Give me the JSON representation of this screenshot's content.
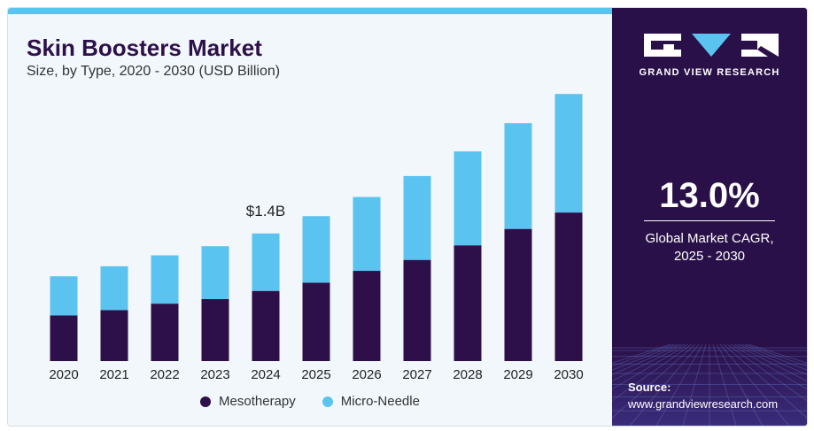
{
  "header": {
    "title": "Skin Boosters Market",
    "subtitle": "Size, by Type, 2020 - 2030 (USD Billion)"
  },
  "chart_data": {
    "type": "bar",
    "stacked": true,
    "categories": [
      "2020",
      "2021",
      "2022",
      "2023",
      "2024",
      "2025",
      "2026",
      "2027",
      "2028",
      "2029",
      "2030"
    ],
    "series": [
      {
        "name": "Mesotherapy",
        "color": "#2d0f4a",
        "values": [
          0.5,
          0.56,
          0.63,
          0.68,
          0.77,
          0.86,
          0.99,
          1.11,
          1.27,
          1.45,
          1.63
        ]
      },
      {
        "name": "Micro-Needle",
        "color": "#5bc3ef",
        "values": [
          0.43,
          0.48,
          0.53,
          0.58,
          0.63,
          0.73,
          0.81,
          0.92,
          1.03,
          1.16,
          1.3
        ]
      }
    ],
    "ylim": [
      0,
      3.0
    ],
    "annotations": [
      {
        "category": "2024",
        "text": "$1.4B"
      }
    ],
    "legend": "bottom-center",
    "grid": false
  },
  "legend": {
    "items": [
      {
        "label": "Mesotherapy",
        "color": "#2d0f4a"
      },
      {
        "label": "Micro-Needle",
        "color": "#5bc3ef"
      }
    ]
  },
  "sidebar": {
    "brand": "GRAND VIEW RESEARCH",
    "cagr_value": "13.0%",
    "cagr_label_line1": "Global Market CAGR,",
    "cagr_label_line2": "2025 - 2030",
    "source_label": "Source:",
    "source_url": "www.grandviewresearch.com"
  },
  "colors": {
    "sidebar_bg": "#2a1048",
    "accent": "#5bc3ef",
    "panel_bg": "#f1f7fb"
  }
}
